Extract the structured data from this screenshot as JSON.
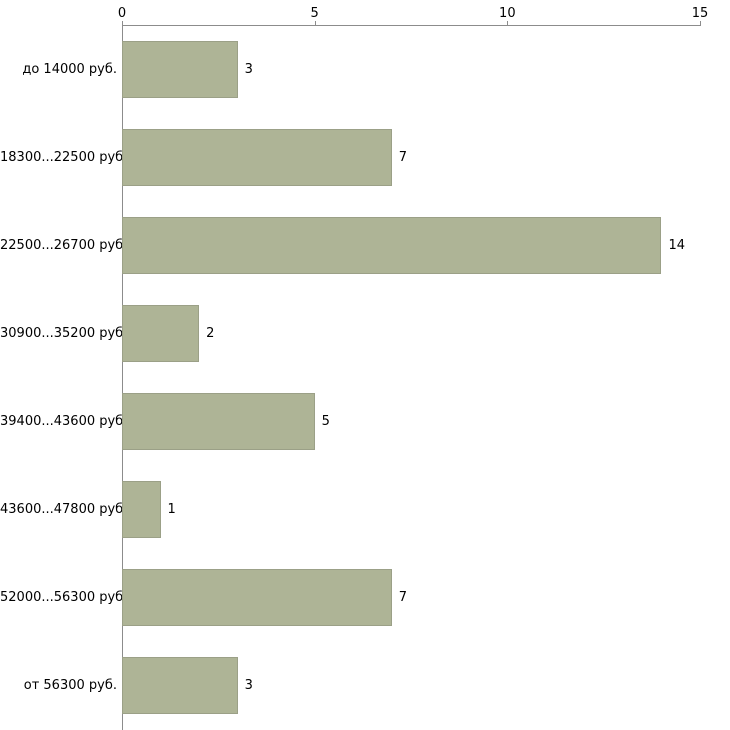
{
  "chart_data": {
    "type": "bar",
    "orientation": "horizontal",
    "title": "",
    "xlabel": "",
    "ylabel": "",
    "categories": [
      "до 14000 руб.",
      "18300...22500 руб.",
      "22500...26700 руб.",
      "30900...35200 руб.",
      "39400...43600 руб.",
      "43600...47800 руб.",
      "52000...56300 руб.",
      "от 56300 руб."
    ],
    "values": [
      3,
      7,
      14,
      2,
      5,
      1,
      7,
      3
    ],
    "xlim": [
      0,
      15
    ],
    "x_tick_values": [
      0,
      5,
      10,
      15
    ],
    "x_tick_labels": [
      "0",
      "5",
      "10",
      "15"
    ],
    "grid": false,
    "legend": false,
    "axis_position": "top",
    "colors": {
      "bar_fill": "#aeb496",
      "bar_border": "#9ba087",
      "axis_line": "#8c8c8c",
      "text": "#000000",
      "background": "#ffffff"
    }
  }
}
